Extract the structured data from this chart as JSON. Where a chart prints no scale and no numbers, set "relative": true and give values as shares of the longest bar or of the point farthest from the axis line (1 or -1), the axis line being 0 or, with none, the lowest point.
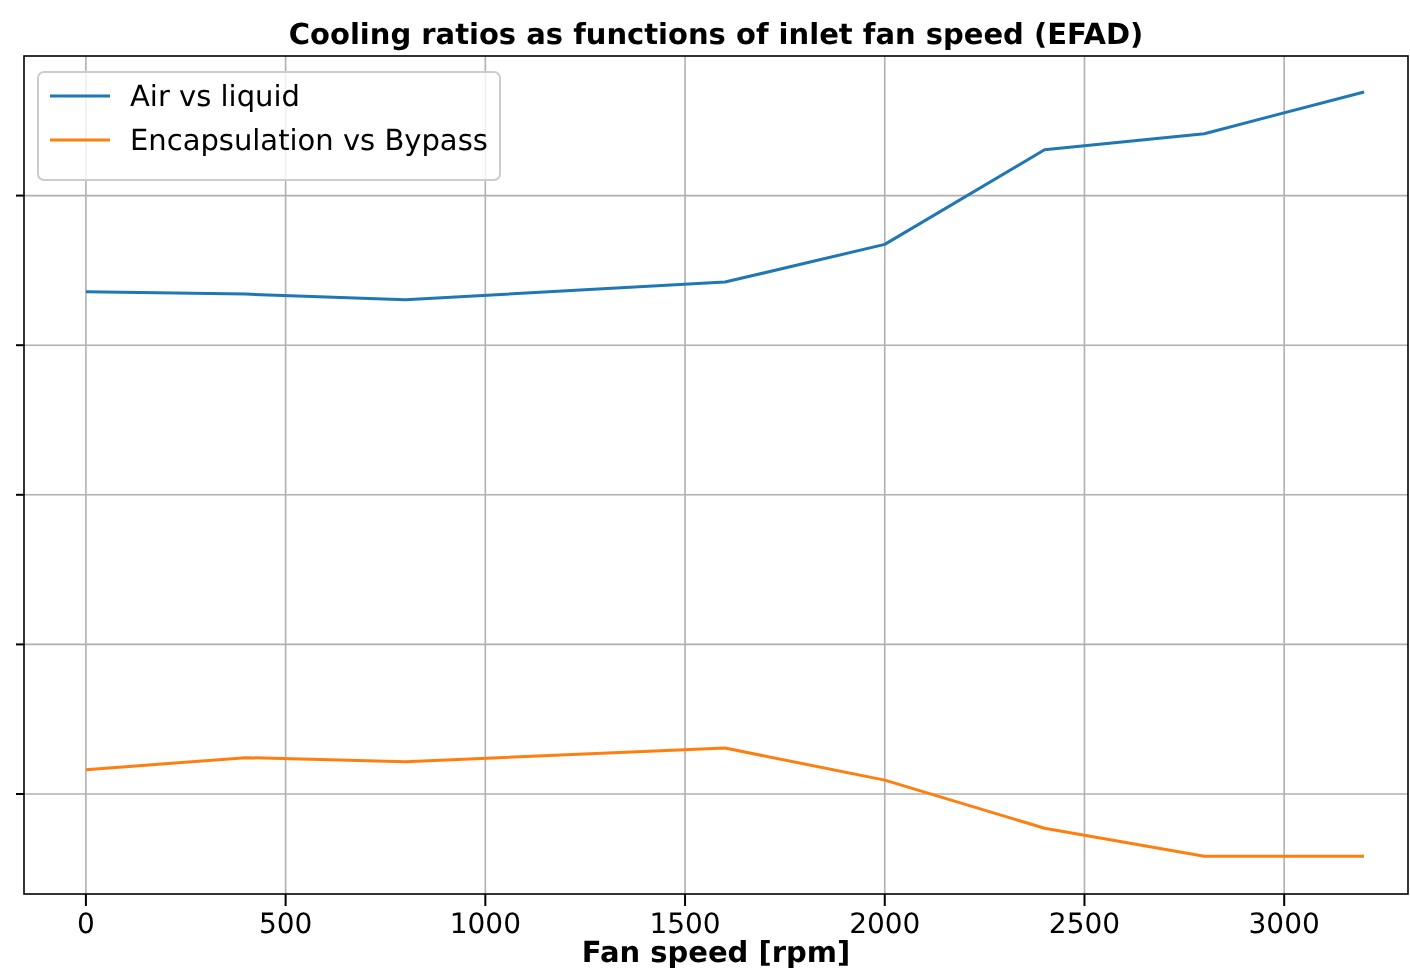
{
  "chart_data": {
    "type": "line",
    "title": "Cooling ratios as functions of inlet fan speed (EFAD)",
    "xlabel": "Fan speed [rpm]",
    "x": [
      0,
      400,
      800,
      1600,
      2000,
      2400,
      2800,
      3200
    ],
    "xlim": [
      -155,
      3310
    ],
    "xticks": [
      0,
      500,
      1000,
      1500,
      2000,
      2500,
      3000
    ],
    "relative": true,
    "tick_labels": "x",
    "grid": true,
    "legend": "top left",
    "series": [
      {
        "name": "Air vs liquid",
        "color": "#1f77b4",
        "values": [
          0.751,
          0.748,
          0.741,
          0.763,
          0.81,
          0.928,
          0.948,
          1
        ]
      },
      {
        "name": "Encapsulation vs Bypass",
        "color": "#ff7f0e",
        "values": [
          0.155,
          0.17,
          0.165,
          0.182,
          0.142,
          0.082,
          0.047,
          0.047
        ]
      }
    ]
  }
}
